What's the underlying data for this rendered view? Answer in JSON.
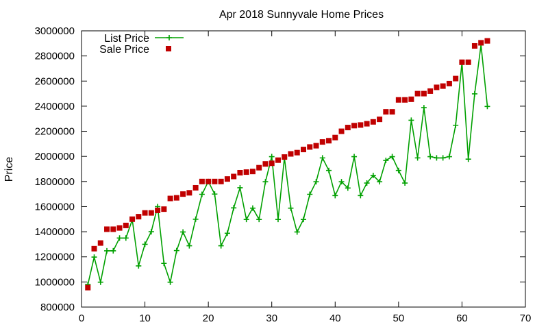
{
  "chart_data": {
    "type": "line",
    "title": "Apr 2018 Sunnyvale Home Prices",
    "xlabel": "",
    "ylabel": "Price",
    "xlim": [
      0,
      70
    ],
    "ylim": [
      800000,
      3000000
    ],
    "x_ticks": [
      0,
      10,
      20,
      30,
      40,
      50,
      60,
      70
    ],
    "y_ticks": [
      800000,
      1000000,
      1200000,
      1400000,
      1600000,
      1800000,
      2000000,
      2200000,
      2400000,
      2600000,
      2800000,
      3000000
    ],
    "grid": false,
    "legend_position": "top-left",
    "series": [
      {
        "name": "List Price",
        "style": "line-with-plus-markers",
        "color": "#00a000",
        "x": [
          1,
          2,
          3,
          4,
          5,
          6,
          7,
          8,
          9,
          10,
          11,
          12,
          13,
          14,
          15,
          16,
          17,
          18,
          19,
          20,
          21,
          22,
          23,
          24,
          25,
          26,
          27,
          28,
          29,
          30,
          31,
          32,
          33,
          34,
          35,
          36,
          37,
          38,
          39,
          40,
          41,
          42,
          43,
          44,
          45,
          46,
          47,
          48,
          49,
          50,
          51,
          52,
          53,
          54,
          55,
          56,
          57,
          58,
          59,
          60,
          61,
          62,
          63,
          64
        ],
        "values": [
          980000,
          1198000,
          998000,
          1248000,
          1248000,
          1350000,
          1350000,
          1495000,
          1128000,
          1300000,
          1400000,
          1600000,
          1148000,
          998000,
          1250000,
          1398000,
          1288000,
          1500000,
          1698000,
          1800000,
          1700000,
          1288000,
          1388000,
          1590000,
          1750000,
          1498000,
          1588000,
          1498000,
          1798000,
          1998000,
          1498000,
          1988000,
          1588000,
          1398000,
          1498000,
          1698000,
          1798000,
          1988000,
          1888000,
          1688000,
          1798000,
          1748000,
          1998000,
          1688000,
          1788000,
          1848000,
          1798000,
          1968000,
          1998000,
          1888000,
          1788000,
          2288000,
          1988000,
          2388000,
          1998000,
          1988000,
          1988000,
          1998000,
          2248000,
          2748000,
          1978000,
          2498000,
          2888000,
          2398000
        ]
      },
      {
        "name": "Sale Price",
        "style": "square-markers",
        "color": "#c00000",
        "x": [
          1,
          2,
          3,
          4,
          5,
          6,
          7,
          8,
          9,
          10,
          11,
          12,
          13,
          14,
          15,
          16,
          17,
          18,
          19,
          20,
          21,
          22,
          23,
          24,
          25,
          26,
          27,
          28,
          29,
          30,
          31,
          32,
          33,
          34,
          35,
          36,
          37,
          38,
          39,
          40,
          41,
          42,
          43,
          44,
          45,
          46,
          47,
          48,
          49,
          50,
          51,
          52,
          53,
          54,
          55,
          56,
          57,
          58,
          59,
          60,
          61,
          62,
          63,
          64
        ],
        "values": [
          955000,
          1265000,
          1310000,
          1420000,
          1420000,
          1430000,
          1450000,
          1500000,
          1520000,
          1550000,
          1550000,
          1570000,
          1580000,
          1665000,
          1670000,
          1700000,
          1710000,
          1750000,
          1800000,
          1800000,
          1800000,
          1800000,
          1820000,
          1840000,
          1870000,
          1875000,
          1880000,
          1910000,
          1940000,
          1945000,
          1970000,
          1995000,
          2020000,
          2030000,
          2055000,
          2075000,
          2085000,
          2115000,
          2125000,
          2150000,
          2200000,
          2230000,
          2245000,
          2250000,
          2260000,
          2275000,
          2295000,
          2355000,
          2355000,
          2450000,
          2450000,
          2455000,
          2500000,
          2500000,
          2520000,
          2550000,
          2560000,
          2580000,
          2620000,
          2750000,
          2750000,
          2880000,
          2905000,
          2920000
        ]
      }
    ]
  }
}
